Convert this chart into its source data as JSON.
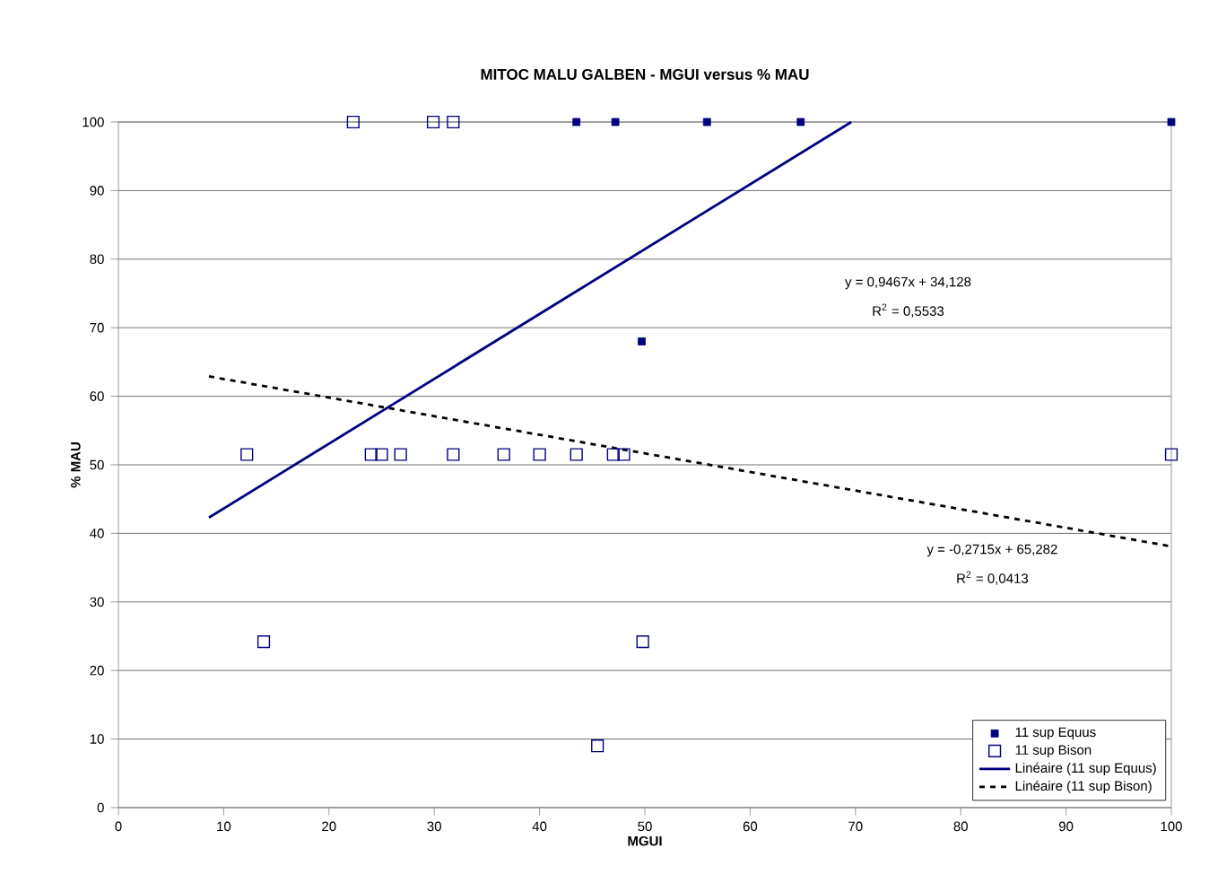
{
  "chart_data": {
    "type": "scatter",
    "title": "MITOC MALU GALBEN - MGUI versus % MAU",
    "xlabel": "MGUI",
    "ylabel": "% MAU",
    "series": [
      {
        "name": "11 sup Equus",
        "color": "#000080",
        "marker": "square",
        "x": [
          43.5,
          47.2,
          55.9,
          64.8,
          100,
          49.7
        ],
        "values": [
          100,
          100,
          100,
          100,
          100,
          68
        ]
      },
      {
        "name": "11 sup Bison",
        "color": "#000080",
        "marker": "square",
        "x": [
          22.3,
          29.9,
          31.8,
          12.2,
          24,
          25,
          26.8,
          31.8,
          36.6,
          40,
          43.5,
          47,
          48,
          100,
          13.8,
          49.8,
          45.5
        ],
        "values": [
          100,
          100,
          100,
          51.5,
          51.5,
          51.5,
          51.5,
          51.5,
          51.5,
          51.5,
          51.5,
          51.5,
          51.5,
          51.5,
          24.2,
          24.2,
          9
        ]
      },
      {
        "name": "Linéaire (11 sup Equus)",
        "type": "line",
        "color": "#000080",
        "line_style": "solid",
        "x": [
          8.6,
          69.6
        ],
        "values": [
          42.3,
          100
        ]
      },
      {
        "name": "Linéaire (11 sup Bison)",
        "type": "line",
        "color": "#000000",
        "line_style": "dashed",
        "x": [
          8.6,
          100
        ],
        "values": [
          62.9,
          38.1
        ]
      }
    ],
    "annotations": [
      "y = 0,9467x + 34,128",
      "R$^{2}$ = 0,5533",
      "y = -0,2715x + 65,282",
      "R$^{2}$ = 0,0413"
    ],
    "xlim": [
      0,
      100
    ],
    "ylim": [
      0,
      100
    ],
    "xticks": [
      0,
      10,
      20,
      30,
      40,
      50,
      60,
      70,
      80,
      90,
      100
    ],
    "yticks": [
      0,
      10,
      20,
      30,
      40,
      50,
      60,
      70,
      80,
      90,
      100
    ],
    "grid": "y",
    "legend": "bottom right"
  }
}
